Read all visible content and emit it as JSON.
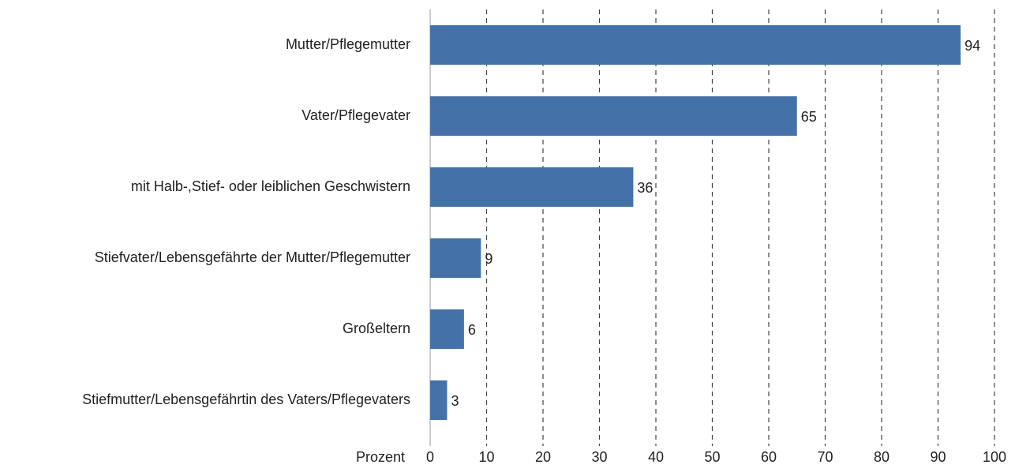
{
  "chart_data": {
    "type": "hbar",
    "categories": [
      "Mutter/Pflegemutter",
      "Vater/Pflegevater",
      "mit Halb-,Stief- oder leiblichen Geschwistern",
      "Stiefvater/Lebensgefährte der Mutter/Pflegemutter",
      "Großeltern",
      "Stiefmutter/Lebensgefährtin des Vaters/Pflegevaters"
    ],
    "values": [
      94,
      65,
      36,
      9,
      6,
      3
    ],
    "color": "#4472a8",
    "xlabel": "Prozent",
    "xlim": [
      0,
      100
    ],
    "xticks": [
      0,
      10,
      20,
      30,
      40,
      50,
      60,
      70,
      80,
      90,
      100
    ],
    "grid": true
  }
}
